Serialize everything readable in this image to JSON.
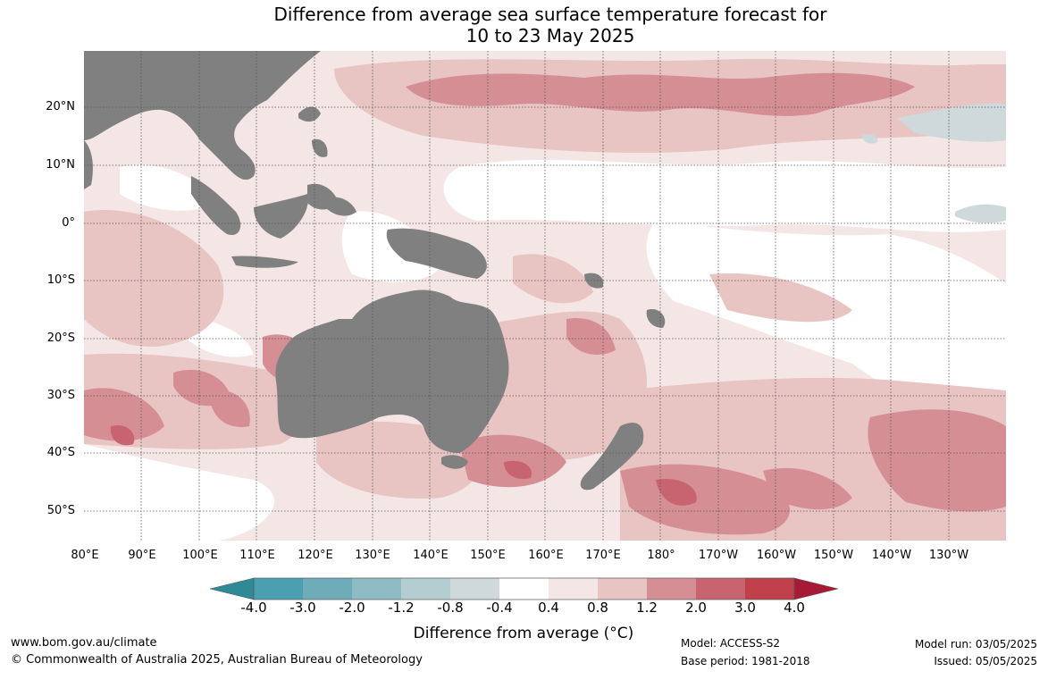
{
  "title": {
    "line1": "Difference from average sea surface temperature forecast for",
    "line2": "10 to 23 May 2025"
  },
  "map": {
    "lat_labels": [
      "20°N",
      "10°N",
      "0°",
      "10°S",
      "20°S",
      "30°S",
      "40°S",
      "50°S"
    ],
    "lon_labels": [
      "80°E",
      "90°E",
      "100°E",
      "110°E",
      "120°E",
      "130°E",
      "140°E",
      "150°E",
      "160°E",
      "170°E",
      "180°",
      "170°W",
      "160°W",
      "150°W",
      "140°W",
      "130°W"
    ],
    "land_color": "#808080",
    "grid": "dotted"
  },
  "colorbar": {
    "ticks": [
      "-4.0",
      "-3.0",
      "-2.0",
      "-1.2",
      "-0.8",
      "-0.4",
      "0.4",
      "0.8",
      "1.2",
      "2.0",
      "3.0",
      "4.0"
    ],
    "colors": [
      "#2e8a96",
      "#4aa0b0",
      "#6eacba",
      "#8fbcc4",
      "#b3cdd1",
      "#cfd8da",
      "#ffffff",
      "#f5e6e6",
      "#e8c4c2",
      "#d58e94",
      "#c86470",
      "#c0404c",
      "#a61a35"
    ],
    "label": "Difference from average ($^\\circ$C)",
    "label_display": "Difference from average (°C)"
  },
  "footer": {
    "website": "www.bom.gov.au/climate",
    "copyright": "© Commonwealth of Australia 2025, Australian Bureau of Meteorology",
    "model": "Model: ACCESS-S2",
    "base_period": "Base period: 1981-2018",
    "model_run": "Model run: 03/05/2025",
    "issued": "Issued: 05/05/2025"
  }
}
